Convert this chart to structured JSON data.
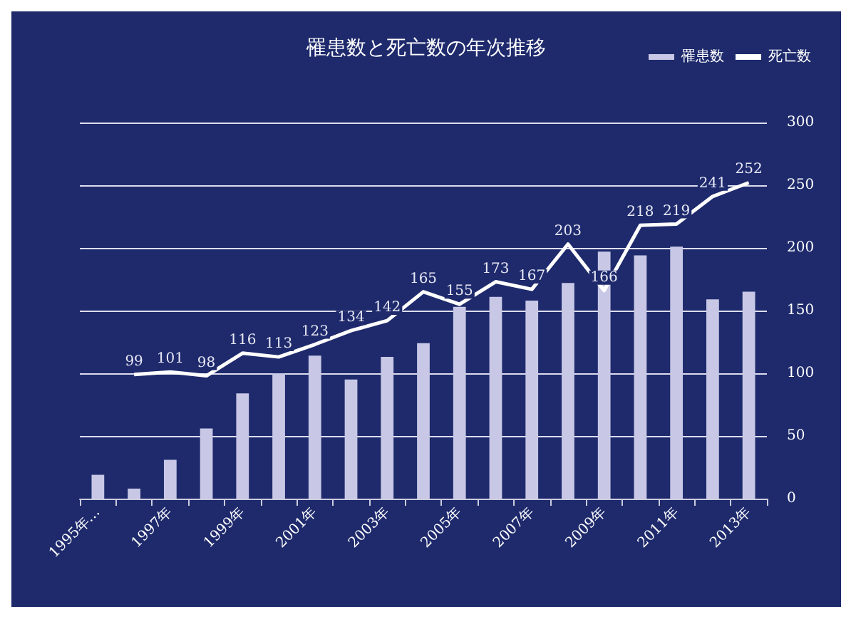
{
  "chart_data": {
    "type": "bar",
    "title": "罹患数と死亡数の年次推移",
    "categories": [
      "1995年…",
      null,
      "1997年",
      null,
      "1999年",
      null,
      "2001年",
      null,
      "2003年",
      null,
      "2005年",
      null,
      "2007年",
      null,
      "2009年",
      null,
      "2011年",
      null,
      "2013年"
    ],
    "series": [
      {
        "name": "罹患数",
        "color": "#c8c8e6",
        "values": [
          19,
          8,
          31,
          56,
          84,
          100,
          114,
          95,
          113,
          124,
          153,
          161,
          158,
          172,
          197,
          194,
          201,
          159,
          165
        ]
      },
      {
        "name": "死亡数",
        "type": "line",
        "color": "#ffffff",
        "values": [
          null,
          99,
          101,
          98,
          116,
          113,
          123,
          134,
          142,
          165,
          155,
          173,
          167,
          203,
          166,
          218,
          219,
          241,
          252
        ],
        "value_labels": [
          null,
          "99",
          "101",
          "98",
          "116",
          "113",
          "123",
          "134",
          "142",
          "165",
          "155",
          "173",
          "167",
          "203",
          "166",
          "218",
          "219",
          "241",
          "252"
        ]
      }
    ],
    "ylim": [
      0,
      300
    ],
    "yticks": [
      0,
      50,
      100,
      150,
      200,
      250,
      300
    ],
    "grid": "y",
    "legend": "top right",
    "marker": "none"
  }
}
